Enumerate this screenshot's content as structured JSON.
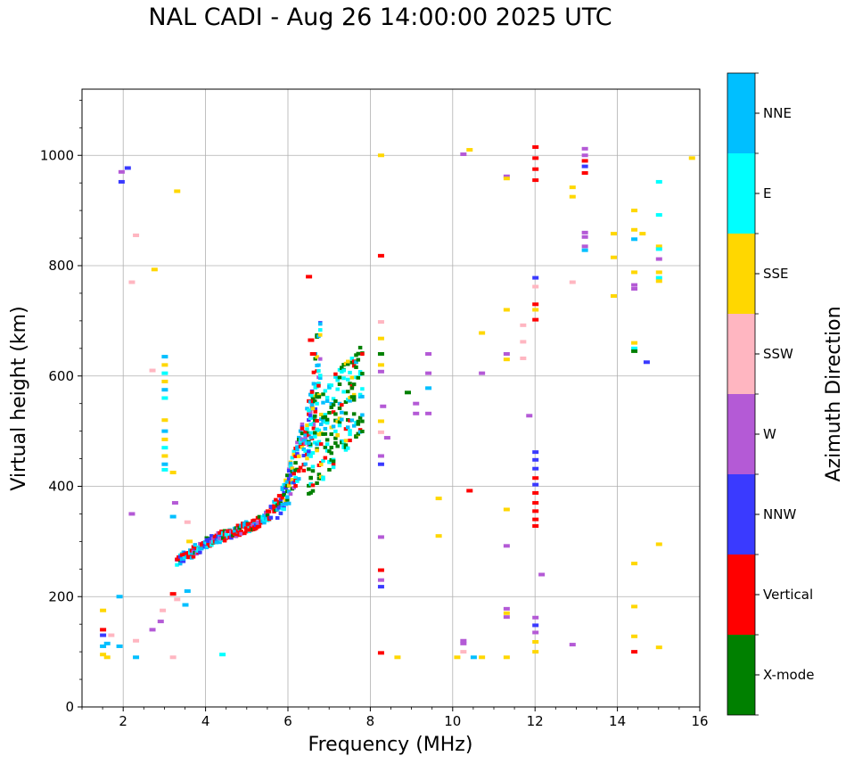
{
  "chart_data": {
    "type": "scatter",
    "title": "NAL CADI - Aug 26 14:00:00 2025 UTC",
    "xlabel": "Frequency (MHz)",
    "ylabel": "Virtual height (km)",
    "xlim": [
      1,
      16
    ],
    "ylim": [
      0,
      1120
    ],
    "xticks": [
      "2",
      "4",
      "6",
      "8",
      "10",
      "12",
      "14",
      "16"
    ],
    "yticks": [
      "0",
      "200",
      "400",
      "600",
      "800",
      "1000"
    ],
    "grid": true,
    "colorbar": {
      "label": "Azimuth Direction",
      "categories": [
        {
          "name": "X-mode",
          "color": "#008000"
        },
        {
          "name": "Vertical",
          "color": "#ff0000"
        },
        {
          "name": "NNW",
          "color": "#3a3aff"
        },
        {
          "name": "W",
          "color": "#b45ad6"
        },
        {
          "name": "SSW",
          "color": "#ffb6c1"
        },
        {
          "name": "SSE",
          "color": "#ffd700"
        },
        {
          "name": "E",
          "color": "#00ffff"
        },
        {
          "name": "NNE",
          "color": "#00bfff"
        }
      ]
    },
    "trace_band": [
      [
        3.3,
        262
      ],
      [
        3.6,
        275
      ],
      [
        3.9,
        290
      ],
      [
        4.2,
        302
      ],
      [
        4.5,
        310
      ],
      [
        4.8,
        318
      ],
      [
        5.1,
        327
      ],
      [
        5.4,
        338
      ],
      [
        5.7,
        355
      ],
      [
        5.9,
        375
      ],
      [
        6.05,
        400
      ],
      [
        6.2,
        430
      ],
      [
        6.35,
        460
      ],
      [
        6.5,
        500
      ],
      [
        6.6,
        540
      ],
      [
        6.7,
        600
      ],
      [
        6.8,
        630
      ]
    ],
    "echoes": [
      [
        1.5,
        175,
        "SSE"
      ],
      [
        1.5,
        140,
        "Vertical"
      ],
      [
        1.5,
        130,
        "NNW"
      ],
      [
        1.5,
        110,
        "NNE"
      ],
      [
        1.5,
        95,
        "SSE"
      ],
      [
        1.6,
        115,
        "NNE"
      ],
      [
        1.6,
        90,
        "SSE"
      ],
      [
        1.7,
        130,
        "SSW"
      ],
      [
        1.9,
        200,
        "NNE"
      ],
      [
        1.9,
        110,
        "NNE"
      ],
      [
        1.95,
        970,
        "W"
      ],
      [
        2.1,
        977,
        "NNW"
      ],
      [
        1.95,
        952,
        "NNW"
      ],
      [
        2.3,
        855,
        "SSW"
      ],
      [
        2.2,
        770,
        "SSW"
      ],
      [
        2.3,
        120,
        "SSW"
      ],
      [
        2.3,
        90,
        "NNE"
      ],
      [
        2.2,
        350,
        "W"
      ],
      [
        2.7,
        610,
        "SSW"
      ],
      [
        2.75,
        793,
        "SSE"
      ],
      [
        2.7,
        140,
        "W"
      ],
      [
        2.9,
        155,
        "W"
      ],
      [
        2.95,
        175,
        "SSW"
      ],
      [
        3.2,
        205,
        "Vertical"
      ],
      [
        3.2,
        90,
        "SSW"
      ],
      [
        3.3,
        935,
        "SSE"
      ],
      [
        3.3,
        195,
        "SSW"
      ],
      [
        3.5,
        185,
        "NNE"
      ],
      [
        3.55,
        210,
        "NNE"
      ],
      [
        3.55,
        335,
        "SSW"
      ],
      [
        3.6,
        300,
        "SSE"
      ],
      [
        3.25,
        370,
        "W"
      ],
      [
        3.2,
        345,
        "NNE"
      ],
      [
        3.2,
        425,
        "SSE"
      ],
      [
        4.4,
        95,
        "E"
      ],
      [
        3.0,
        635,
        "NNE"
      ],
      [
        3.0,
        620,
        "SSE"
      ],
      [
        3.0,
        605,
        "E"
      ],
      [
        3.0,
        590,
        "SSE"
      ],
      [
        3.0,
        575,
        "NNE"
      ],
      [
        3.0,
        560,
        "E"
      ],
      [
        3.0,
        520,
        "SSE"
      ],
      [
        3.0,
        500,
        "NNE"
      ],
      [
        3.0,
        485,
        "SSE"
      ],
      [
        3.0,
        470,
        "E"
      ],
      [
        3.0,
        455,
        "SSE"
      ],
      [
        3.0,
        440,
        "NNE"
      ],
      [
        3.0,
        430,
        "E"
      ],
      [
        6.5,
        780,
        "Vertical"
      ],
      [
        6.55,
        665,
        "Vertical"
      ],
      [
        6.6,
        640,
        "Vertical"
      ],
      [
        8.25,
        1000,
        "SSE"
      ],
      [
        8.25,
        818,
        "Vertical"
      ],
      [
        8.25,
        698,
        "SSW"
      ],
      [
        8.25,
        668,
        "SSE"
      ],
      [
        8.25,
        640,
        "X-mode"
      ],
      [
        8.25,
        620,
        "SSE"
      ],
      [
        8.25,
        608,
        "W"
      ],
      [
        8.3,
        545,
        "W"
      ],
      [
        8.25,
        518,
        "SSE"
      ],
      [
        8.25,
        498,
        "SSW"
      ],
      [
        8.4,
        488,
        "W"
      ],
      [
        8.25,
        455,
        "W"
      ],
      [
        8.25,
        440,
        "NNW"
      ],
      [
        8.25,
        308,
        "W"
      ],
      [
        8.25,
        248,
        "Vertical"
      ],
      [
        8.25,
        230,
        "W"
      ],
      [
        8.25,
        218,
        "NNW"
      ],
      [
        8.25,
        98,
        "Vertical"
      ],
      [
        8.65,
        90,
        "SSE"
      ],
      [
        8.9,
        570,
        "X-mode"
      ],
      [
        9.1,
        550,
        "W"
      ],
      [
        9.1,
        532,
        "W"
      ],
      [
        9.4,
        640,
        "W"
      ],
      [
        9.4,
        605,
        "W"
      ],
      [
        9.4,
        578,
        "NNE"
      ],
      [
        9.4,
        532,
        "W"
      ],
      [
        9.65,
        378,
        "SSE"
      ],
      [
        9.65,
        310,
        "SSE"
      ],
      [
        10.1,
        90,
        "SSE"
      ],
      [
        10.25,
        1002,
        "W"
      ],
      [
        10.4,
        1010,
        "SSE"
      ],
      [
        10.25,
        120,
        "W"
      ],
      [
        10.25,
        115,
        "W"
      ],
      [
        10.25,
        100,
        "SSW"
      ],
      [
        10.4,
        392,
        "Vertical"
      ],
      [
        10.5,
        90,
        "NNE"
      ],
      [
        10.7,
        90,
        "SSE"
      ],
      [
        10.7,
        605,
        "W"
      ],
      [
        10.7,
        678,
        "SSE"
      ],
      [
        11.3,
        962,
        "W"
      ],
      [
        11.3,
        958,
        "SSE"
      ],
      [
        11.3,
        720,
        "SSE"
      ],
      [
        11.3,
        640,
        "W"
      ],
      [
        11.3,
        630,
        "SSE"
      ],
      [
        11.3,
        358,
        "SSE"
      ],
      [
        11.3,
        292,
        "W"
      ],
      [
        11.3,
        178,
        "W"
      ],
      [
        11.3,
        170,
        "SSE"
      ],
      [
        11.3,
        163,
        "W"
      ],
      [
        11.3,
        90,
        "SSE"
      ],
      [
        11.7,
        692,
        "SSW"
      ],
      [
        11.7,
        662,
        "SSW"
      ],
      [
        11.7,
        632,
        "SSW"
      ],
      [
        11.85,
        528,
        "W"
      ],
      [
        12.0,
        1015,
        "Vertical"
      ],
      [
        12.0,
        995,
        "Vertical"
      ],
      [
        12.0,
        975,
        "Vertical"
      ],
      [
        12.0,
        955,
        "Vertical"
      ],
      [
        12.0,
        778,
        "NNW"
      ],
      [
        12.0,
        762,
        "SSW"
      ],
      [
        12.0,
        730,
        "Vertical"
      ],
      [
        12.0,
        720,
        "SSE"
      ],
      [
        12.0,
        702,
        "Vertical"
      ],
      [
        12.0,
        462,
        "NNW"
      ],
      [
        12.0,
        448,
        "NNW"
      ],
      [
        12.0,
        432,
        "NNW"
      ],
      [
        12.0,
        415,
        "Vertical"
      ],
      [
        12.0,
        403,
        "NNW"
      ],
      [
        12.0,
        388,
        "Vertical"
      ],
      [
        12.0,
        370,
        "Vertical"
      ],
      [
        12.0,
        355,
        "Vertical"
      ],
      [
        12.0,
        340,
        "Vertical"
      ],
      [
        12.0,
        328,
        "Vertical"
      ],
      [
        12.0,
        162,
        "W"
      ],
      [
        12.0,
        148,
        "NNW"
      ],
      [
        12.0,
        135,
        "W"
      ],
      [
        12.0,
        118,
        "SSE"
      ],
      [
        12.0,
        100,
        "SSE"
      ],
      [
        12.15,
        240,
        "W"
      ],
      [
        12.9,
        942,
        "SSE"
      ],
      [
        12.9,
        925,
        "SSE"
      ],
      [
        12.9,
        770,
        "SSW"
      ],
      [
        12.9,
        113,
        "W"
      ],
      [
        13.2,
        1012,
        "W"
      ],
      [
        13.2,
        1000,
        "W"
      ],
      [
        13.2,
        990,
        "Vertical"
      ],
      [
        13.2,
        980,
        "NNW"
      ],
      [
        13.2,
        968,
        "Vertical"
      ],
      [
        13.2,
        860,
        "W"
      ],
      [
        13.2,
        852,
        "W"
      ],
      [
        13.2,
        835,
        "W"
      ],
      [
        13.2,
        828,
        "NNE"
      ],
      [
        13.9,
        858,
        "SSE"
      ],
      [
        13.9,
        815,
        "SSE"
      ],
      [
        13.9,
        745,
        "SSE"
      ],
      [
        14.4,
        900,
        "SSE"
      ],
      [
        14.4,
        865,
        "SSE"
      ],
      [
        14.4,
        848,
        "NNE"
      ],
      [
        14.4,
        788,
        "SSE"
      ],
      [
        14.4,
        765,
        "W"
      ],
      [
        14.4,
        758,
        "W"
      ],
      [
        14.4,
        660,
        "SSE"
      ],
      [
        14.4,
        650,
        "E"
      ],
      [
        14.4,
        645,
        "X-mode"
      ],
      [
        14.4,
        260,
        "SSE"
      ],
      [
        14.4,
        182,
        "SSE"
      ],
      [
        14.4,
        128,
        "SSE"
      ],
      [
        14.4,
        100,
        "Vertical"
      ],
      [
        14.6,
        858,
        "SSE"
      ],
      [
        14.7,
        625,
        "NNW"
      ],
      [
        15.0,
        952,
        "E"
      ],
      [
        15.0,
        892,
        "E"
      ],
      [
        15.0,
        835,
        "SSE"
      ],
      [
        15.0,
        830,
        "E"
      ],
      [
        15.0,
        812,
        "W"
      ],
      [
        15.0,
        788,
        "SSE"
      ],
      [
        15.0,
        778,
        "E"
      ],
      [
        15.0,
        772,
        "SSE"
      ],
      [
        15.0,
        295,
        "SSE"
      ],
      [
        15.0,
        108,
        "SSE"
      ],
      [
        15.8,
        995,
        "SSE"
      ]
    ]
  }
}
